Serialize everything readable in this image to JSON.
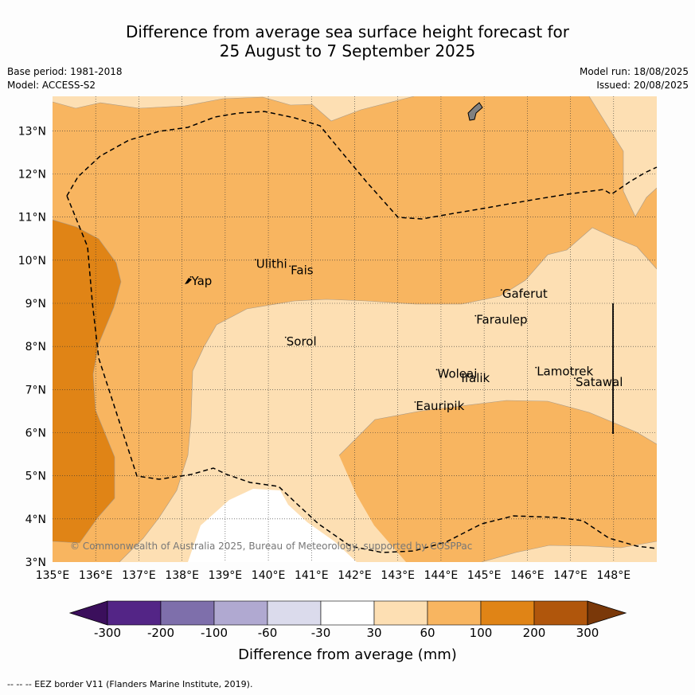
{
  "title_line1": "Difference from average sea surface height forecast for",
  "title_line2": "25 August to 7 September 2025",
  "base_period": "Base period: 1981-2018",
  "model": "Model: ACCESS-S2",
  "model_run": "Model run: 18/08/2025",
  "issued": "Issued: 20/08/2025",
  "lat_labels": [
    "13°N",
    "12°N",
    "11°N",
    "10°N",
    "9°N",
    "8°N",
    "7°N",
    "6°N",
    "5°N",
    "4°N",
    "3°N"
  ],
  "lon_labels": [
    "135°E",
    "136°E",
    "137°E",
    "138°E",
    "139°E",
    "140°E",
    "141°E",
    "142°E",
    "143°E",
    "144°E",
    "145°E",
    "146°E",
    "147°E",
    "148°E"
  ],
  "places": [
    {
      "name": "Yap",
      "lon": 138.2,
      "lat": 9.5
    },
    {
      "name": "Ulithi",
      "lon": 139.7,
      "lat": 9.9
    },
    {
      "name": "Fais",
      "lon": 140.5,
      "lat": 9.75
    },
    {
      "name": "Gaferut",
      "lon": 145.4,
      "lat": 9.2
    },
    {
      "name": "Faraulep",
      "lon": 144.8,
      "lat": 8.6
    },
    {
      "name": "Sorol",
      "lon": 140.4,
      "lat": 8.1
    },
    {
      "name": "Woleai",
      "lon": 143.9,
      "lat": 7.35
    },
    {
      "name": "Ifalik",
      "lon": 144.45,
      "lat": 7.25
    },
    {
      "name": "Lamotrek",
      "lon": 146.2,
      "lat": 7.4
    },
    {
      "name": "Satawal",
      "lon": 147.1,
      "lat": 7.15
    },
    {
      "name": "Eauripik",
      "lon": 143.4,
      "lat": 6.6
    }
  ],
  "copyright": "© Commonwealth of Australia 2025, Bureau of Meteorology, supported by COSPPac",
  "colorbar": {
    "ticks": [
      "-300",
      "-200",
      "-100",
      "-60",
      "-30",
      "30",
      "60",
      "100",
      "200",
      "300"
    ],
    "colors": [
      "#3b0f5c",
      "#532586",
      "#7e6fab",
      "#b0a9d1",
      "#dbdbec",
      "#ffffff",
      "#fddfb3",
      "#f8b560",
      "#e08416",
      "#b0560c",
      "#7a3809"
    ],
    "title": "Difference from average (mm)"
  },
  "legend_note": "--  --  -- EEZ border V11 (Flanders Marine Institute, 2019)."
}
